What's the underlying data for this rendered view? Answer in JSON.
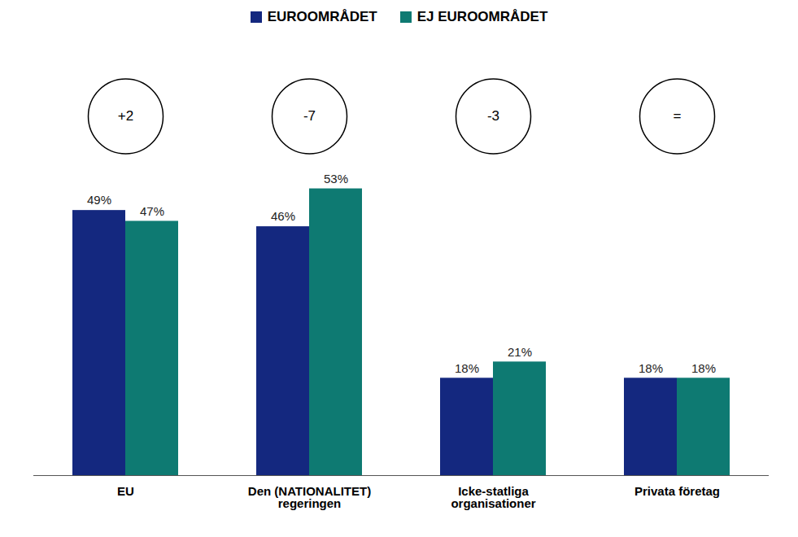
{
  "chart_data": {
    "type": "bar",
    "categories": [
      "EU",
      "Den (NATIONALITET) regeringen",
      "Icke-statliga organisationer",
      "Privata företag"
    ],
    "series": [
      {
        "name": "EUROOMRÅDET",
        "color": "#14287f",
        "values": [
          49,
          46,
          18,
          18
        ],
        "value_labels": [
          "49%",
          "46%",
          "18%",
          "18%"
        ]
      },
      {
        "name": "EJ EUROOMRÅDET",
        "color": "#0e7a72",
        "values": [
          47,
          53,
          21,
          18
        ],
        "value_labels": [
          "47%",
          "53%",
          "21%",
          "18%"
        ]
      }
    ],
    "annotations": [
      "+2",
      "-7",
      "-3",
      "="
    ],
    "ylim": [
      0,
      80
    ],
    "yticks": [],
    "tick_labels": "x",
    "data_labels": true,
    "legend": "top",
    "grid": false
  }
}
